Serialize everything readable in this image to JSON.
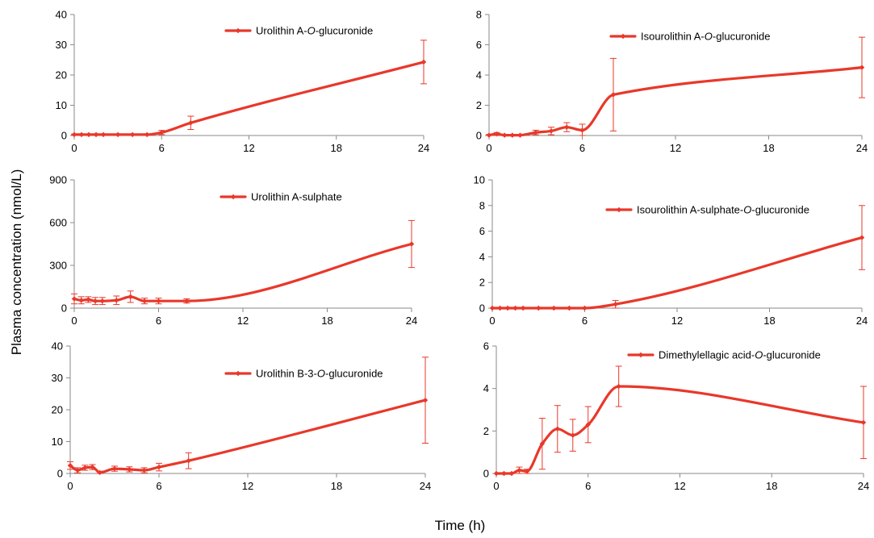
{
  "figure": {
    "ylabel": "Plasma concentration (nmol/L)",
    "xlabel": "Time (h)"
  },
  "colors": {
    "series": "#e8382a",
    "axis": "#8a8a8a"
  },
  "chart_data": [
    {
      "type": "line",
      "legend": {
        "prefix": "Urolithin A-",
        "italic": "O",
        "suffix": "-glucuronide"
      },
      "ylim": [
        0,
        40
      ],
      "yticks": [
        0,
        10,
        20,
        30,
        40
      ],
      "xlim": [
        0,
        24
      ],
      "xticks": [
        0,
        6,
        12,
        18,
        24
      ],
      "x": [
        0,
        0.5,
        1,
        1.5,
        2,
        3,
        4,
        5,
        6,
        8,
        24
      ],
      "y": [
        0.3,
        0.3,
        0.3,
        0.3,
        0.3,
        0.3,
        0.3,
        0.3,
        1,
        4.2,
        24.3
      ],
      "err": [
        0.2,
        0.2,
        0.2,
        0.2,
        0.2,
        0.2,
        0.2,
        0.2,
        0.7,
        2.2,
        7.2
      ]
    },
    {
      "type": "line",
      "legend": {
        "prefix": "Isourolithin A-",
        "italic": "O",
        "suffix": "-glucuronide"
      },
      "ylim": [
        0,
        8
      ],
      "yticks": [
        0,
        2,
        4,
        6,
        8
      ],
      "xlim": [
        0,
        24
      ],
      "xticks": [
        0,
        6,
        12,
        18,
        24
      ],
      "x": [
        0,
        0.5,
        1,
        1.5,
        2,
        3,
        4,
        5,
        6,
        8,
        24
      ],
      "y": [
        0.02,
        0.1,
        0.02,
        0.02,
        0.02,
        0.2,
        0.3,
        0.55,
        0.35,
        2.7,
        4.5
      ],
      "err": [
        0.05,
        0.1,
        0.05,
        0.05,
        0.05,
        0.15,
        0.25,
        0.3,
        0.4,
        2.4,
        2.0
      ]
    },
    {
      "type": "line",
      "legend": {
        "prefix": "Urolithin A-sulphate",
        "italic": "",
        "suffix": ""
      },
      "ylim": [
        0,
        900
      ],
      "yticks": [
        0,
        300,
        600,
        900
      ],
      "xlim": [
        0,
        24
      ],
      "xticks": [
        0,
        6,
        12,
        18,
        24
      ],
      "x": [
        0,
        0.5,
        1,
        1.5,
        2,
        3,
        4,
        5,
        6,
        8,
        24
      ],
      "y": [
        65,
        55,
        60,
        50,
        50,
        55,
        80,
        50,
        50,
        50,
        450
      ],
      "err": [
        35,
        25,
        20,
        25,
        25,
        30,
        40,
        20,
        20,
        15,
        165
      ]
    },
    {
      "type": "line",
      "legend": {
        "prefix": "Isourolithin A-sulphate-",
        "italic": "O",
        "suffix": "-glucuronide"
      },
      "ylim": [
        0,
        10
      ],
      "yticks": [
        0,
        2,
        4,
        6,
        8,
        10
      ],
      "xlim": [
        0,
        24
      ],
      "xticks": [
        0,
        6,
        12,
        18,
        24
      ],
      "x": [
        0,
        0.5,
        1,
        1.5,
        2,
        3,
        4,
        5,
        6,
        8,
        24
      ],
      "y": [
        0,
        0,
        0,
        0,
        0,
        0,
        0,
        0,
        0,
        0.3,
        5.5
      ],
      "err": [
        0,
        0,
        0,
        0,
        0,
        0,
        0,
        0,
        0,
        0.3,
        2.5
      ]
    },
    {
      "type": "line",
      "legend": {
        "prefix": "Urolithin B-3-",
        "italic": "O",
        "suffix": "-glucuronide"
      },
      "ylim": [
        0,
        40
      ],
      "yticks": [
        0,
        10,
        20,
        30,
        40
      ],
      "xlim": [
        0,
        24
      ],
      "xticks": [
        0,
        6,
        12,
        18,
        24
      ],
      "x": [
        0,
        0.5,
        1,
        1.5,
        2,
        3,
        4,
        5,
        6,
        8,
        24
      ],
      "y": [
        2.5,
        1,
        1.8,
        2,
        0.3,
        1.5,
        1.3,
        1,
        2,
        4,
        23
      ],
      "err": [
        1.2,
        0.8,
        0.8,
        0.8,
        0.4,
        0.8,
        0.8,
        0.8,
        1.2,
        2.5,
        13.5
      ]
    },
    {
      "type": "line",
      "legend": {
        "prefix": "Dimethylellagic acid-",
        "italic": "O",
        "suffix": "-glucuronide"
      },
      "ylim": [
        0,
        6
      ],
      "yticks": [
        0,
        2,
        4,
        6
      ],
      "xlim": [
        0,
        24
      ],
      "xticks": [
        0,
        6,
        12,
        18,
        24
      ],
      "x": [
        0,
        0.5,
        1,
        1.5,
        2,
        3,
        4,
        5,
        6,
        8,
        24
      ],
      "y": [
        0,
        0,
        0,
        0.15,
        0.1,
        1.4,
        2.1,
        1.8,
        2.3,
        4.1,
        2.4
      ],
      "err": [
        0,
        0,
        0,
        0.15,
        0.1,
        1.2,
        1.1,
        0.75,
        0.85,
        0.95,
        1.7
      ]
    }
  ]
}
